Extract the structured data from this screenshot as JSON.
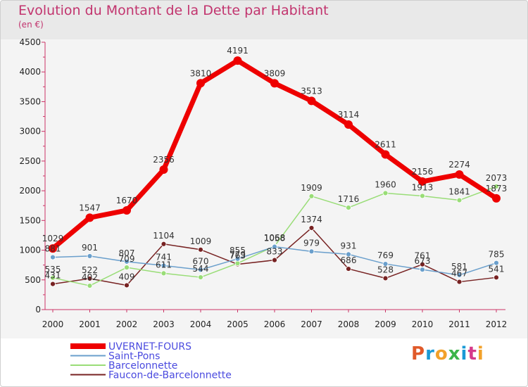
{
  "header": {
    "title": "Evolution du Montant de la Dette par Habitant",
    "subtitle": "(en €)"
  },
  "logo": {
    "text": "Proxiti",
    "colors": [
      "#e05a2a",
      "#1a9ad6",
      "#f2a12a",
      "#3bb54a",
      "#1a9ad6",
      "#d63a8a",
      "#f2a12a"
    ]
  },
  "chart_data": {
    "type": "line",
    "x": [
      "2000",
      "2001",
      "2002",
      "2003",
      "2004",
      "2005",
      "2006",
      "2007",
      "2008",
      "2009",
      "2010",
      "2011",
      "2012"
    ],
    "ylim": [
      0,
      4500
    ],
    "yticks": [
      0,
      500,
      1000,
      1500,
      2000,
      2500,
      3000,
      3500,
      4000,
      4500
    ],
    "grid": false,
    "legend_position": "bottom-left",
    "series": [
      {
        "name": "UVERNET-FOURS",
        "color": "#ee0000",
        "values": [
          1029,
          1547,
          1670,
          2356,
          3810,
          4191,
          3809,
          3513,
          3114,
          2611,
          2156,
          2274,
          1873
        ],
        "labels": [
          "1029",
          "1547",
          "1670",
          "2356",
          "3810",
          "4191",
          "3809",
          "3513",
          "3114",
          "2611",
          "2156",
          "2274",
          "1873"
        ]
      },
      {
        "name": "Saint-Pons",
        "color": "#6a9fcc",
        "values": [
          881,
          901,
          807,
          741,
          670,
          855,
          1058,
          979,
          931,
          769,
          673,
          581,
          785
        ],
        "labels": [
          "881",
          "901",
          "807",
          "741",
          "670",
          "855",
          "1058",
          "979",
          "931",
          "769",
          "673",
          "581",
          "785"
        ]
      },
      {
        "name": "Barcelonnette",
        "color": "#99dd77",
        "values": [
          535,
          402,
          709,
          611,
          544,
          779,
          1068,
          1909,
          1716,
          1960,
          1913,
          1841,
          2073
        ],
        "labels": [
          "535",
          "402",
          "709",
          "611",
          "544",
          "779",
          "1068",
          "1909",
          "1716",
          "1960",
          "1913",
          "1841",
          "2073"
        ]
      },
      {
        "name": "Faucon-de-Barcelonnette",
        "color": "#772222",
        "values": [
          431,
          522,
          409,
          1104,
          1009,
          763,
          833,
          1374,
          686,
          528,
          761,
          467,
          541
        ],
        "labels": [
          "431",
          "522",
          "409",
          "1104",
          "1009",
          "763",
          "833",
          "1374",
          "686",
          "528",
          "761",
          "467",
          "541"
        ]
      }
    ]
  }
}
